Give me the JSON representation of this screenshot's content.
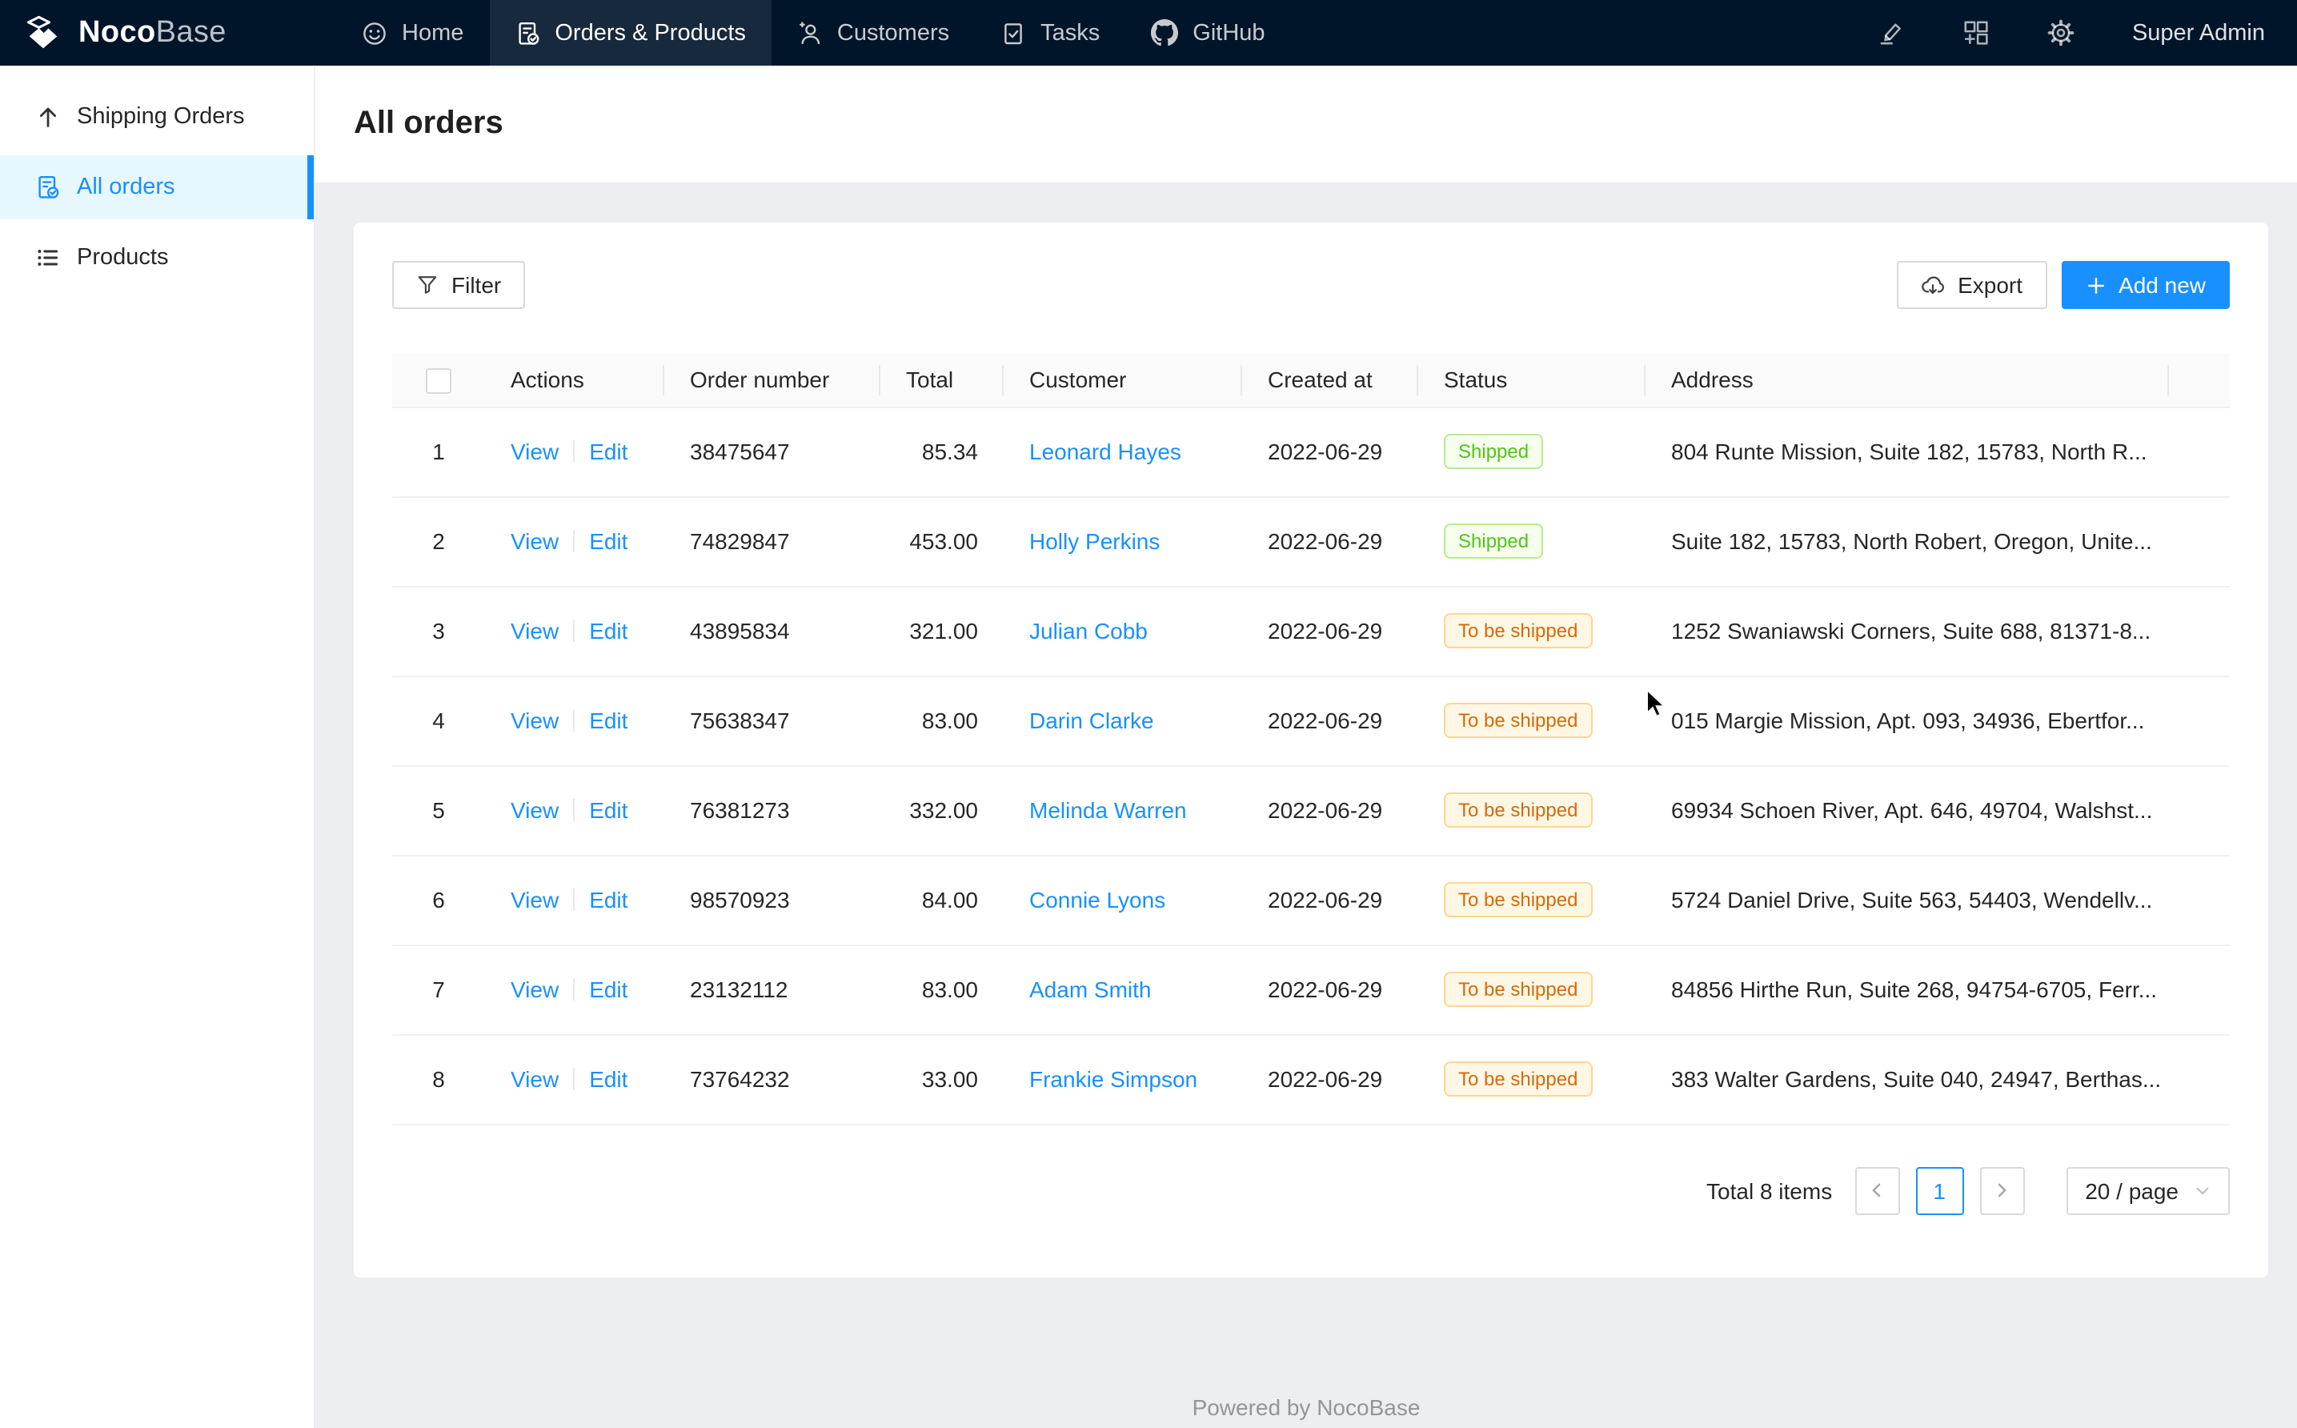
{
  "nav": {
    "logo": {
      "text_bold": "Noco",
      "text_light": "Base",
      "icon": "nocobase-logo-icon"
    },
    "items": [
      {
        "label": "Home",
        "icon": "smile-icon",
        "active": false
      },
      {
        "label": "Orders & Products",
        "icon": "file-done-icon",
        "active": true
      },
      {
        "label": "Customers",
        "icon": "user-icon",
        "active": false
      },
      {
        "label": "Tasks",
        "icon": "carry-out-icon",
        "active": false
      },
      {
        "label": "GitHub",
        "icon": "github-icon",
        "active": false
      }
    ],
    "right": {
      "icons": [
        "highlight-icon",
        "appstore-add-icon",
        "setting-icon"
      ],
      "user": "Super Admin"
    }
  },
  "sidebar": {
    "items": [
      {
        "label": "Shipping Orders",
        "icon": "arrow-up-icon",
        "active": false
      },
      {
        "label": "All orders",
        "icon": "file-done-icon",
        "active": true
      },
      {
        "label": "Products",
        "icon": "unordered-list-icon",
        "active": false
      }
    ]
  },
  "page": {
    "title": "All orders"
  },
  "toolbar": {
    "filter_label": "Filter",
    "export_label": "Export",
    "add_new_label": "Add new"
  },
  "table": {
    "columns": [
      "",
      "Actions",
      "Order number",
      "Total",
      "Customer",
      "Created at",
      "Status",
      "Address"
    ],
    "action_labels": [
      "View",
      "Edit"
    ],
    "rows": [
      {
        "index": "1",
        "order_number": "38475647",
        "total": "85.34",
        "customer": "Leonard Hayes",
        "created_at": "2022-06-29",
        "status": "Shipped",
        "status_type": "success",
        "address": "804 Runte Mission, Suite 182, 15783, North R..."
      },
      {
        "index": "2",
        "order_number": "74829847",
        "total": "453.00",
        "customer": "Holly Perkins",
        "created_at": "2022-06-29",
        "status": "Shipped",
        "status_type": "success",
        "address": "Suite 182, 15783, North Robert, Oregon, Unite..."
      },
      {
        "index": "3",
        "order_number": "43895834",
        "total": "321.00",
        "customer": "Julian Cobb",
        "created_at": "2022-06-29",
        "status": "To be shipped",
        "status_type": "warning",
        "address": "1252 Swaniawski Corners, Suite 688, 81371-8..."
      },
      {
        "index": "4",
        "order_number": "75638347",
        "total": "83.00",
        "customer": "Darin Clarke",
        "created_at": "2022-06-29",
        "status": "To be shipped",
        "status_type": "warning",
        "address": "015 Margie Mission, Apt. 093, 34936, Ebertfor..."
      },
      {
        "index": "5",
        "order_number": "76381273",
        "total": "332.00",
        "customer": "Melinda Warren",
        "created_at": "2022-06-29",
        "status": "To be shipped",
        "status_type": "warning",
        "address": "69934 Schoen River, Apt. 646, 49704, Walshst..."
      },
      {
        "index": "6",
        "order_number": "98570923",
        "total": "84.00",
        "customer": "Connie Lyons",
        "created_at": "2022-06-29",
        "status": "To be shipped",
        "status_type": "warning",
        "address": "5724 Daniel Drive, Suite 563, 54403, Wendellv..."
      },
      {
        "index": "7",
        "order_number": "23132112",
        "total": "83.00",
        "customer": "Adam Smith",
        "created_at": "2022-06-29",
        "status": "To be shipped",
        "status_type": "warning",
        "address": "84856 Hirthe Run, Suite 268, 94754-6705, Ferr..."
      },
      {
        "index": "8",
        "order_number": "73764232",
        "total": "33.00",
        "customer": "Frankie Simpson",
        "created_at": "2022-06-29",
        "status": "To be shipped",
        "status_type": "warning",
        "address": "383 Walter Gardens, Suite 040, 24947, Berthas..."
      }
    ]
  },
  "pagination": {
    "total_text": "Total 8 items",
    "current_page": "1",
    "page_size": "20 / page"
  },
  "footer": {
    "text": "Powered by NocoBase"
  },
  "colors": {
    "accent": "#1890ff",
    "nav_bg": "#001529",
    "nav_active_bg": "#16293d",
    "sidebar_active_bg": "#e6f7ff",
    "content_bg": "#eceef2",
    "tag_success_text": "#52c41a",
    "tag_success_bg": "#f6ffed",
    "tag_success_border": "#b7eb8f",
    "tag_warning_text": "#d46b08",
    "tag_warning_bg": "#fff7e6",
    "tag_warning_border": "#ffd591"
  }
}
